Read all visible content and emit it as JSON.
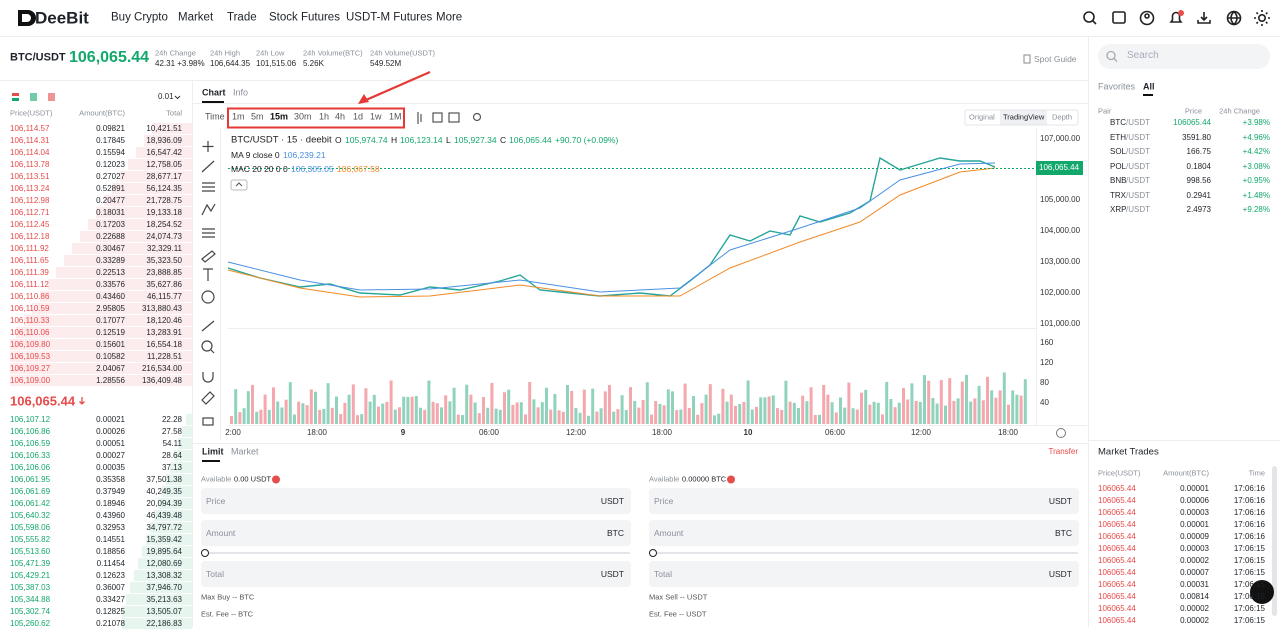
{
  "nav": {
    "logo": "DeeBit",
    "menu": [
      "Buy Crypto",
      "Market",
      "Trade",
      "Stock Futures",
      "USDT-M Futures",
      "More"
    ]
  },
  "ticker": {
    "pair": "BTC/USDT",
    "price": "106,065.44",
    "spot_guide": "Spot Guide",
    "stats": [
      {
        "label": "24h Change",
        "value": "42.31 +3.98%"
      },
      {
        "label": "24h High",
        "value": "106,644.35"
      },
      {
        "label": "24h Low",
        "value": "101,515.06"
      },
      {
        "label": "24h Volume(BTC)",
        "value": "5.26K"
      },
      {
        "label": "24h Volume(USDT)",
        "value": "549.52M"
      }
    ]
  },
  "order_book": {
    "precision": "0.01",
    "headers": [
      "Price(USDT)",
      "Amount(BTC)",
      "Total"
    ],
    "asks": [
      [
        "106,114.57",
        "0.09821",
        "10,421.51"
      ],
      [
        "106,114.31",
        "0.17845",
        "18,936.09"
      ],
      [
        "106,114.04",
        "0.15594",
        "16,547.42"
      ],
      [
        "106,113.78",
        "0.12023",
        "12,758.05"
      ],
      [
        "106,113.51",
        "0.27027",
        "28,677.17"
      ],
      [
        "106,113.24",
        "0.52891",
        "56,124.35"
      ],
      [
        "106,112.98",
        "0.20477",
        "21,728.75"
      ],
      [
        "106,112.71",
        "0.18031",
        "19,133.18"
      ],
      [
        "106,112.45",
        "0.17203",
        "18,254.52"
      ],
      [
        "106,112.18",
        "0.22688",
        "24,074.73"
      ],
      [
        "106,111.92",
        "0.30467",
        "32,329.11"
      ],
      [
        "106,111.65",
        "0.33289",
        "35,323.50"
      ],
      [
        "106,111.39",
        "0.22513",
        "23,888.85"
      ],
      [
        "106,111.12",
        "0.33576",
        "35,627.86"
      ],
      [
        "106,110.86",
        "0.43460",
        "46,115.77"
      ],
      [
        "106,110.59",
        "2.95805",
        "313,880.43"
      ],
      [
        "106,110.33",
        "0.17077",
        "18,120.46"
      ],
      [
        "106,110.06",
        "0.12519",
        "13,283.91"
      ],
      [
        "106,109.80",
        "0.15601",
        "16,554.18"
      ],
      [
        "106,109.53",
        "0.10582",
        "11,228.51"
      ],
      [
        "106,109.27",
        "2.04067",
        "216,534.00"
      ],
      [
        "106,109.00",
        "1.28556",
        "136,409.48"
      ]
    ],
    "mid_price": "106,065.44",
    "bids": [
      [
        "106,107.12",
        "0.00021",
        "22.28"
      ],
      [
        "106,106.86",
        "0.00026",
        "27.58"
      ],
      [
        "106,106.59",
        "0.00051",
        "54.11"
      ],
      [
        "106,106.33",
        "0.00027",
        "28.64"
      ],
      [
        "106,106.06",
        "0.00035",
        "37.13"
      ],
      [
        "106,061.95",
        "0.35358",
        "37,501.38"
      ],
      [
        "106,061.69",
        "0.37949",
        "40,249.35"
      ],
      [
        "106,061.42",
        "0.18946",
        "20,094.39"
      ],
      [
        "105,640.32",
        "0.43960",
        "46,439.48"
      ],
      [
        "105,598.06",
        "0.32953",
        "34,797.72"
      ],
      [
        "105,555.82",
        "0.14551",
        "15,359.42"
      ],
      [
        "105,513.60",
        "0.18856",
        "19,895.64"
      ],
      [
        "105,471.39",
        "0.11454",
        "12,080.69"
      ],
      [
        "105,429.21",
        "0.12623",
        "13,308.32"
      ],
      [
        "105,387.03",
        "0.36007",
        "37,946.70"
      ],
      [
        "105,344.88",
        "0.33427",
        "35,213.63"
      ],
      [
        "105,302.74",
        "0.12825",
        "13,505.07"
      ],
      [
        "105,260.62",
        "0.21078",
        "22,186.83"
      ]
    ]
  },
  "chart": {
    "tabs": [
      "Chart",
      "Info"
    ],
    "time_label": "Time",
    "intervals": [
      "1m",
      "5m",
      "15m",
      "30m",
      "1h",
      "4h",
      "1d",
      "1w",
      "1M"
    ],
    "views": [
      "Original",
      "TradingView",
      "Depth"
    ],
    "legend": {
      "symbol": "BTC/USDT · 15 · deebit",
      "o_label": "O",
      "open": "105,974.74",
      "h_label": "H",
      "high": "106,123.14",
      "l_label": "L",
      "low": "105,927.34",
      "c_label": "C",
      "close": "106,065.44",
      "change": "+90.70 (+0.09%)",
      "ma_label": "MA 9 close 0",
      "ma_value": "106,239.21",
      "mac_label": "MAC 20 20 0 0",
      "mac_value_1": "106,305.05",
      "mac_value_2": "106,067.58"
    },
    "price_ticks": [
      "107,000.00",
      "105,000.00",
      "104,000.00",
      "103,000.00",
      "102,000.00",
      "101,000.00"
    ],
    "last_price_tag": "106,065.44",
    "volume_label": "Volume",
    "volume_value": "29",
    "volume_ticks": [
      "160",
      "120",
      "80",
      "40"
    ],
    "time_ticks": [
      "2:00",
      "18:00",
      "9",
      "06:00",
      "12:00",
      "18:00",
      "10",
      "06:00",
      "12:00",
      "18:00"
    ]
  },
  "order_form": {
    "tabs": [
      "Limit",
      "Market"
    ],
    "transfer": "Transfer",
    "buy": {
      "available_label": "Available",
      "available": "0.00 USDT",
      "fields": [
        {
          "label": "Price",
          "unit": "USDT"
        },
        {
          "label": "Amount",
          "unit": "BTC"
        },
        {
          "label": "Total",
          "unit": "USDT"
        }
      ],
      "max": "Max Buy -- BTC",
      "fee": "Est. Fee -- BTC"
    },
    "sell": {
      "available_label": "Available",
      "available": "0.00000 BTC",
      "fields": [
        {
          "label": "Price",
          "unit": "USDT"
        },
        {
          "label": "Amount",
          "unit": "BTC"
        },
        {
          "label": "Total",
          "unit": "USDT"
        }
      ],
      "max": "Max Sell -- USDT",
      "fee": "Est. Fee -- USDT"
    }
  },
  "markets": {
    "search": "Search",
    "tabs": [
      "Favorites",
      "All"
    ],
    "headers": [
      "Pair",
      "Price",
      "24h Change"
    ],
    "rows": [
      {
        "base": "BTC",
        "quote": "/USDT",
        "price": "106065.44",
        "change": "+3.98%"
      },
      {
        "base": "ETH",
        "quote": "/USDT",
        "price": "3591.80",
        "change": "+4.96%"
      },
      {
        "base": "SOL",
        "quote": "/USDT",
        "price": "166.75",
        "change": "+4.42%"
      },
      {
        "base": "POL",
        "quote": "/USDT",
        "price": "0.1804",
        "change": "+3.08%"
      },
      {
        "base": "BNB",
        "quote": "/USDT",
        "price": "998.56",
        "change": "+0.95%"
      },
      {
        "base": "TRX",
        "quote": "/USDT",
        "price": "0.2941",
        "change": "+1.48%"
      },
      {
        "base": "XRP",
        "quote": "/USDT",
        "price": "2.4973",
        "change": "+9.28%"
      }
    ]
  },
  "trades": {
    "title": "Market Trades",
    "headers": [
      "Price(USDT)",
      "Amount(BTC)",
      "Time"
    ],
    "rows": [
      [
        "106065.44",
        "0.00001",
        "17:06:16"
      ],
      [
        "106065.44",
        "0.00006",
        "17:06:16"
      ],
      [
        "106065.44",
        "0.00003",
        "17:06:16"
      ],
      [
        "106065.44",
        "0.00001",
        "17:06:16"
      ],
      [
        "106065.44",
        "0.00009",
        "17:06:16"
      ],
      [
        "106065.44",
        "0.00003",
        "17:06:15"
      ],
      [
        "106065.44",
        "0.00002",
        "17:06:15"
      ],
      [
        "106065.44",
        "0.00007",
        "17:06:15"
      ],
      [
        "106065.44",
        "0.00031",
        "17:06:15"
      ],
      [
        "106065.44",
        "0.00814",
        "17:06:15"
      ],
      [
        "106065.44",
        "0.00002",
        "17:06:15"
      ],
      [
        "106065.44",
        "0.00002",
        "17:06:15"
      ]
    ]
  }
}
